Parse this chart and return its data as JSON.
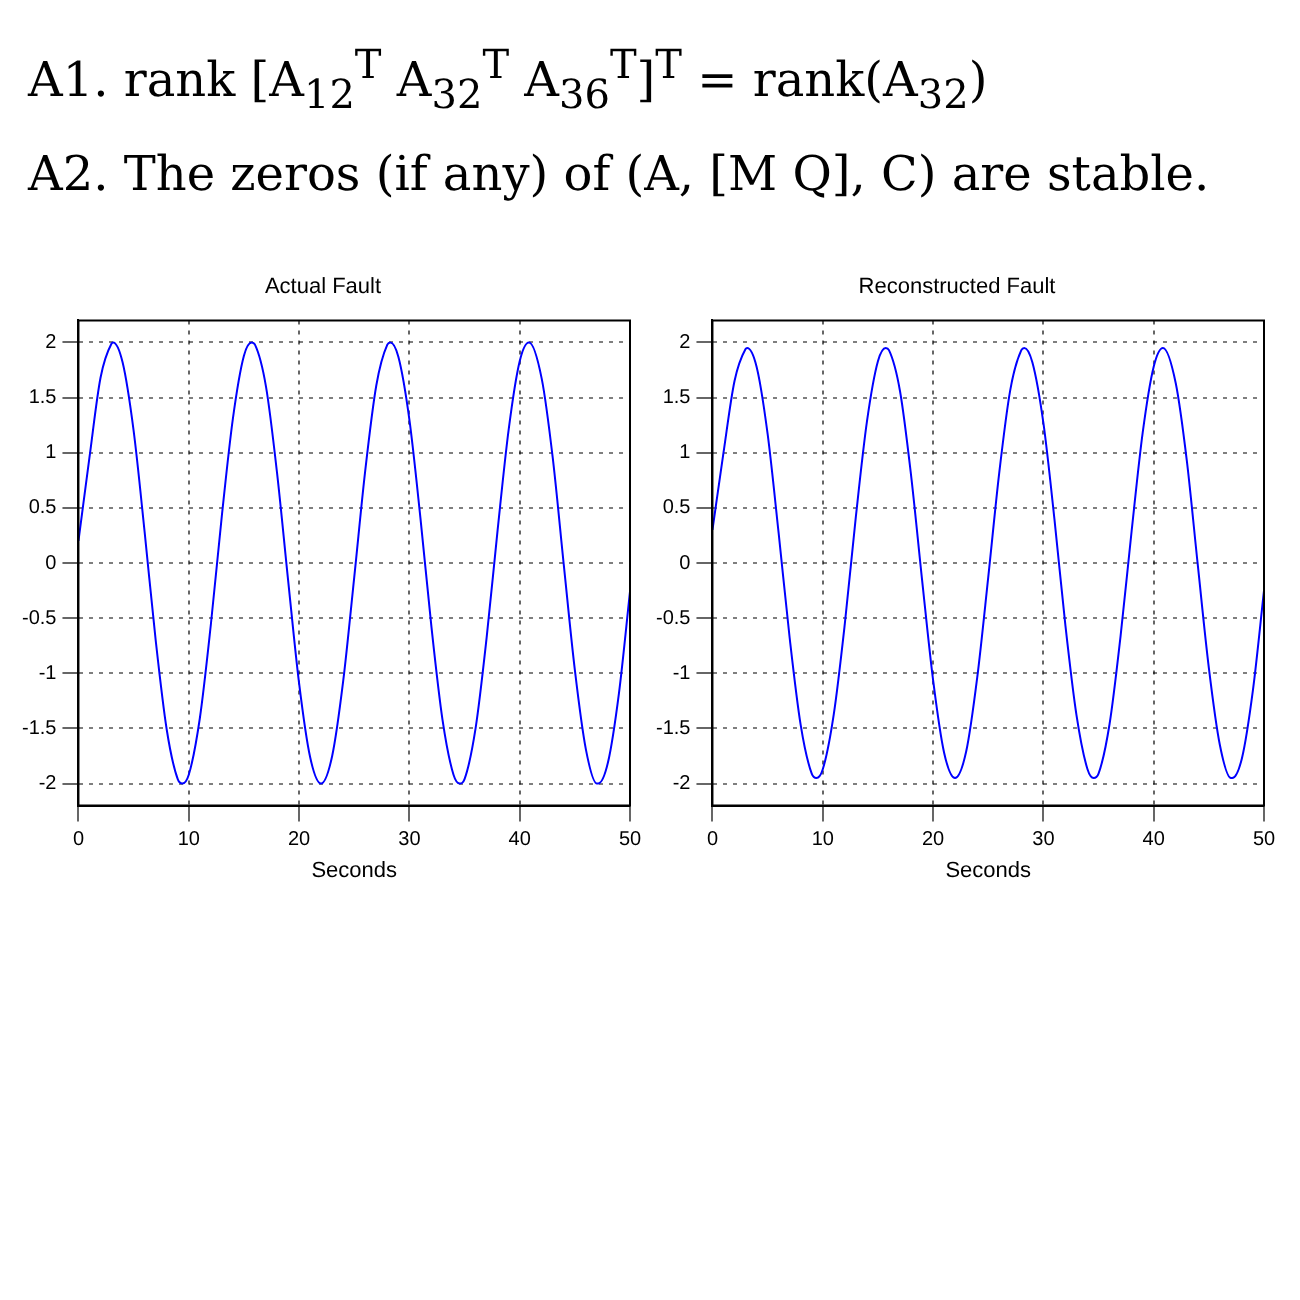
{
  "chart_data": [
    {
      "type": "other",
      "annotations": [
        "A1. rank [A$_{12}$$^{T}$ A$_{32}$$^{T}$ A$_{36}$$^{T}$]$^{T}$ = rank(A$_{32}$)",
        "A2. The zeros (if any) of (A, [M Q], C) are stable."
      ]
    },
    {
      "type": "line",
      "title": "Actual Fault",
      "xlabel": "Seconds",
      "xlim": [
        0,
        50
      ],
      "ylim": [
        -2.2,
        2.2
      ],
      "xticks": [
        0,
        10,
        20,
        30,
        40,
        50
      ],
      "yticks": [
        -2,
        -1.5,
        -1,
        -0.5,
        0,
        0.5,
        1,
        1.5,
        2
      ],
      "grid": true,
      "marker": "none",
      "line_style": "solid",
      "series": [
        {
          "color": "#0000ff",
          "x": [
            0,
            1,
            2,
            3,
            3.14,
            4,
            5,
            6,
            7,
            8,
            9,
            9.42,
            10,
            11,
            12,
            13,
            14,
            15,
            15.71,
            16,
            17,
            18,
            19,
            20,
            21,
            21.99,
            23,
            24,
            25,
            26,
            27,
            28,
            28.27,
            29,
            30,
            31,
            32,
            33,
            34,
            34.56,
            35,
            36,
            37,
            38,
            39,
            40,
            40.84,
            42,
            43,
            44,
            45,
            46,
            47,
            47.12,
            48,
            49,
            50
          ],
          "values": [
            0.2,
            0.96,
            1.68,
            1.99,
            2,
            1.82,
            1.2,
            0.28,
            -0.7,
            -1.51,
            -1.96,
            -2,
            -1.92,
            -1.41,
            -0.56,
            0.43,
            1.31,
            1.88,
            2,
            1.98,
            1.6,
            0.82,
            -0.15,
            -1.09,
            -1.76,
            -2,
            -1.75,
            -1.07,
            -0.13,
            0.84,
            1.61,
            1.98,
            2,
            1.87,
            1.3,
            0.41,
            -0.58,
            -1.42,
            -1.92,
            -2,
            -1.96,
            -1.5,
            -0.68,
            0.3,
            1.21,
            1.83,
            2,
            1.67,
            0.95,
            -0.02,
            -0.97,
            -1.69,
            -2,
            -2,
            -1.81,
            -1.18,
            -0.26
          ]
        }
      ]
    },
    {
      "type": "line",
      "title": "Reconstructed Fault",
      "xlabel": "Seconds",
      "xlim": [
        0,
        50
      ],
      "ylim": [
        -2.2,
        2.2
      ],
      "xticks": [
        0,
        10,
        20,
        30,
        40,
        50
      ],
      "yticks": [
        -2,
        -1.5,
        -1,
        -0.5,
        0,
        0.5,
        1,
        1.5,
        2
      ],
      "grid": true,
      "marker": "none",
      "line_style": "solid",
      "series": [
        {
          "color": "#0000ff",
          "x": [
            0,
            1,
            2,
            3,
            3.14,
            4,
            5,
            6,
            7,
            8,
            9,
            9.42,
            10,
            11,
            12,
            13,
            14,
            15,
            15.71,
            16,
            17,
            18,
            19,
            20,
            21,
            21.99,
            23,
            24,
            25,
            26,
            27,
            28,
            28.27,
            29,
            30,
            31,
            32,
            33,
            34,
            34.56,
            35,
            36,
            37,
            38,
            39,
            40,
            40.84,
            42,
            43,
            44,
            45,
            46,
            47,
            47.12,
            48,
            49,
            50
          ],
          "values": [
            0.3,
            1,
            1.65,
            1.94,
            1.95,
            1.78,
            1.17,
            0.27,
            -0.68,
            -1.47,
            -1.91,
            -1.95,
            -1.87,
            -1.37,
            -0.55,
            0.42,
            1.28,
            1.83,
            1.95,
            1.93,
            1.56,
            0.8,
            -0.15,
            -1.06,
            -1.72,
            -1.95,
            -1.71,
            -1.04,
            -0.13,
            0.82,
            1.57,
            1.93,
            1.95,
            1.82,
            1.27,
            0.4,
            -0.57,
            -1.38,
            -1.87,
            -1.95,
            -1.91,
            -1.46,
            -0.66,
            0.29,
            1.18,
            1.78,
            1.95,
            1.63,
            0.93,
            -0.02,
            -0.95,
            -1.65,
            -1.95,
            -1.95,
            -1.77,
            -1.15,
            -0.25
          ]
        }
      ]
    }
  ]
}
